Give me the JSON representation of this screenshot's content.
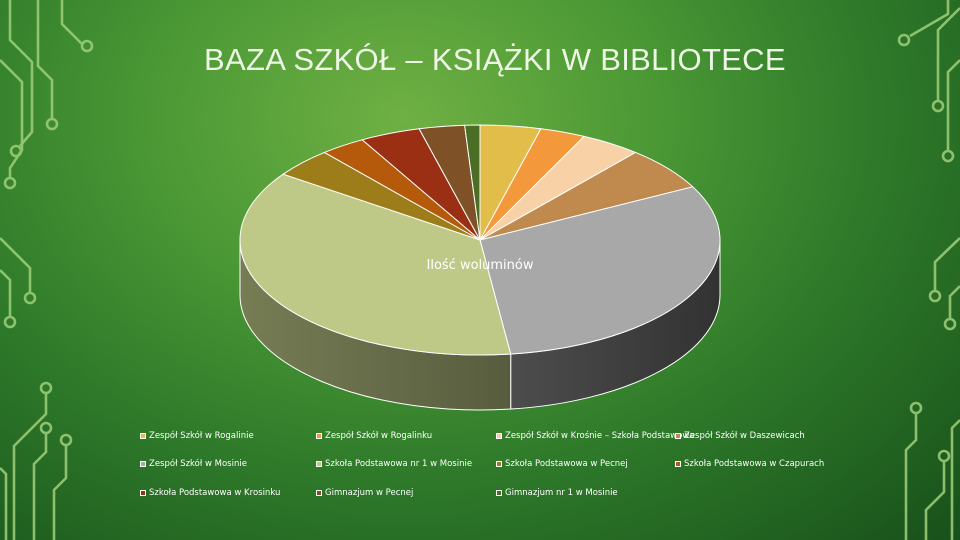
{
  "slide": {
    "title": "BAZA SZKÓŁ – KSIĄŻKI W BIBLIOTECE"
  },
  "chart_data": {
    "type": "pie",
    "title": "Ilość woluminów",
    "categories": [
      "Zespół Szkół w Rogalinie",
      "Zespół Szkół w Rogalinku",
      "Zespół Szkół w Krośnie – Szkoła Podstawowa",
      "Zespół Szkół w Daszewicach",
      "Zespół Szkół w Mosinie",
      "Szkoła Podstawowa nr 1 w Mosinie",
      "Szkoła Podstawowa w Pecnej",
      "Szkoła Podstawowa w Czapurach",
      "Szkoła Podstawowa w Krosinku",
      "Gimnazjum w Pecnej",
      "Gimnazjum nr 1 w Mosinie"
    ],
    "values": [
      4,
      3,
      4,
      6,
      30,
      36,
      4,
      3,
      4,
      3,
      1
    ],
    "colors": [
      "#e2bd4a",
      "#f3993c",
      "#f8d1a6",
      "#c08a4e",
      "#a8a8a8",
      "#bec987",
      "#9c7d1a",
      "#b55a0a",
      "#9a2f14",
      "#7e5126",
      "#4a6e25"
    ],
    "legend_position": "bottom"
  }
}
